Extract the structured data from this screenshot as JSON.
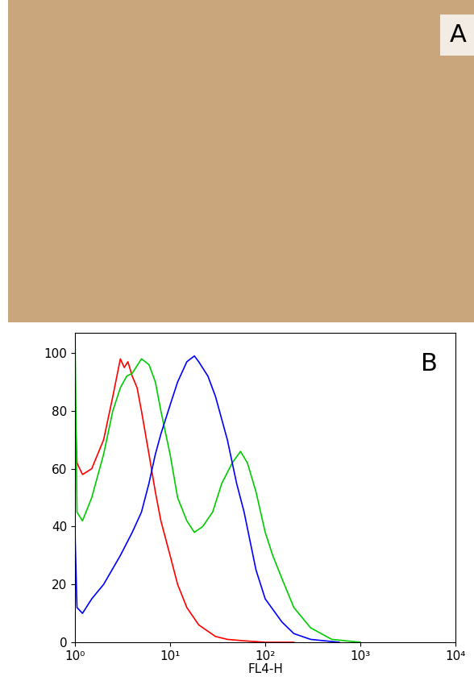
{
  "chart_data": [
    {
      "type": "image",
      "annotation": "A",
      "color": "#c9a67c"
    },
    {
      "type": "line",
      "annotation": "B",
      "x_label": "FL4-H",
      "log": "x",
      "grid": false,
      "xlim": [
        1,
        10000
      ],
      "xticks": [
        {
          "value": 1,
          "label": "10⁰"
        },
        {
          "value": 10,
          "label": "10¹"
        },
        {
          "value": 100,
          "label": "10²"
        },
        {
          "value": 1000,
          "label": "10³"
        },
        {
          "value": 10000,
          "label": "10⁴"
        }
      ],
      "ylim": [
        0,
        107
      ],
      "yticks": [
        0,
        20,
        40,
        60,
        80,
        100
      ],
      "series": [
        {
          "color": "#ff0000",
          "x": [
            1.0,
            1.05,
            1.2,
            1.5,
            2,
            2.5,
            3,
            3.3,
            3.6,
            4,
            4.5,
            5,
            6,
            7,
            8,
            10,
            12,
            15,
            20,
            30,
            40,
            60,
            100,
            200
          ],
          "values": [
            83,
            62,
            58,
            60,
            70,
            85,
            98,
            95,
            97,
            92,
            88,
            80,
            65,
            52,
            42,
            30,
            20,
            12,
            6,
            2,
            1,
            0.5,
            0,
            0
          ]
        },
        {
          "color": "#00cc00",
          "x": [
            1.0,
            1.05,
            1.2,
            1.5,
            2,
            2.5,
            3,
            3.5,
            4,
            5,
            6,
            7,
            8,
            10,
            12,
            15,
            18,
            22,
            28,
            35,
            45,
            55,
            65,
            80,
            100,
            120,
            150,
            200,
            300,
            500,
            1000
          ],
          "values": [
            107,
            45,
            42,
            50,
            65,
            80,
            88,
            92,
            93,
            98,
            96,
            90,
            80,
            65,
            50,
            42,
            38,
            40,
            45,
            55,
            62,
            66,
            62,
            52,
            38,
            30,
            22,
            12,
            5,
            1,
            0
          ]
        },
        {
          "color": "#0000ff",
          "x": [
            1.0,
            1.05,
            1.2,
            1.5,
            2,
            3,
            4,
            5,
            6,
            7,
            8,
            10,
            12,
            15,
            18,
            20,
            25,
            30,
            40,
            50,
            60,
            80,
            100,
            150,
            200,
            300,
            600
          ],
          "values": [
            38,
            12,
            10,
            15,
            20,
            30,
            38,
            45,
            55,
            65,
            72,
            82,
            90,
            97,
            99,
            97,
            92,
            85,
            70,
            55,
            45,
            25,
            15,
            7,
            3,
            1,
            0
          ]
        }
      ]
    }
  ]
}
